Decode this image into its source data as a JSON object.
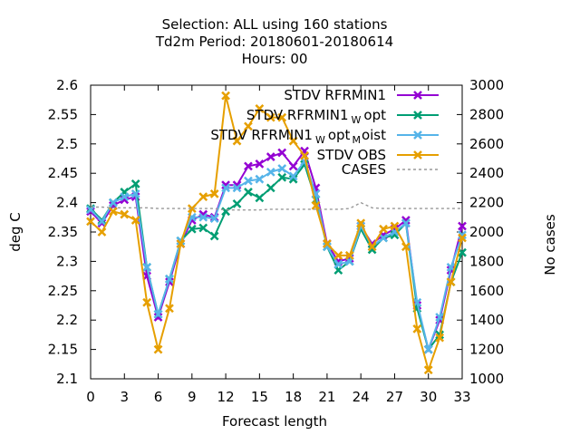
{
  "chart_data": {
    "type": "line",
    "title_lines": [
      "Selection: ALL using   160 stations",
      "Td2m   Period: 20180601-20180614",
      "Hours:  00"
    ],
    "xlabel": "Forecast length",
    "ylabel": "deg C",
    "y2label": "No cases",
    "xlim": [
      0,
      33
    ],
    "ylim": [
      2.1,
      2.6
    ],
    "y2lim": [
      1000,
      3000
    ],
    "xticks": [
      "0",
      "3",
      "6",
      "9",
      "12",
      "15",
      "18",
      "21",
      "24",
      "27",
      "30",
      "33"
    ],
    "yticks": [
      "2.1",
      "2.15",
      "2.2",
      "2.25",
      "2.3",
      "2.35",
      "2.4",
      "2.45",
      "2.5",
      "2.55",
      "2.6"
    ],
    "y2ticks": [
      "1000",
      "1200",
      "1400",
      "1600",
      "1800",
      "2000",
      "2200",
      "2400",
      "2600",
      "2800",
      "3000"
    ],
    "legend_position": "top-right",
    "x": [
      0,
      1,
      2,
      3,
      4,
      5,
      6,
      7,
      8,
      9,
      10,
      11,
      12,
      13,
      14,
      15,
      16,
      17,
      18,
      19,
      20,
      21,
      22,
      23,
      24,
      25,
      26,
      27,
      28,
      29,
      30,
      31,
      32,
      33
    ],
    "series": [
      {
        "name": "STDV RFRMIN1",
        "name_main": "STDV RFRMIN1",
        "color": "#9400d3",
        "axis": "y1",
        "values": [
          2.385,
          2.365,
          2.395,
          2.405,
          2.41,
          2.275,
          2.205,
          2.265,
          2.33,
          2.37,
          2.38,
          2.375,
          2.43,
          2.43,
          2.462,
          2.466,
          2.478,
          2.485,
          2.462,
          2.488,
          2.425,
          2.33,
          2.3,
          2.305,
          2.36,
          2.33,
          2.345,
          2.355,
          2.37,
          2.225,
          2.15,
          2.2,
          2.285,
          2.36
        ]
      },
      {
        "name": "STDV RFRMIN1 W opt",
        "name_main": "STDV RFRMIN1",
        "name_sub": "W",
        "name_tail": "opt",
        "color": "#009e73",
        "axis": "y1",
        "values": [
          2.39,
          2.37,
          2.4,
          2.418,
          2.432,
          2.29,
          2.21,
          2.27,
          2.335,
          2.355,
          2.357,
          2.343,
          2.385,
          2.398,
          2.418,
          2.408,
          2.425,
          2.443,
          2.44,
          2.465,
          2.405,
          2.325,
          2.285,
          2.3,
          2.355,
          2.32,
          2.34,
          2.345,
          2.365,
          2.22,
          2.15,
          2.175,
          2.265,
          2.315
        ]
      },
      {
        "name": "STDV RFRMIN1 W opt M oist",
        "name_main": "STDV RFRMIN1",
        "name_sub": "W",
        "name_tail": "opt",
        "name_sub2": "M",
        "name_tail2": "oist",
        "color": "#56b4e9",
        "axis": "y1",
        "values": [
          2.388,
          2.368,
          2.4,
          2.41,
          2.415,
          2.29,
          2.21,
          2.27,
          2.335,
          2.375,
          2.375,
          2.373,
          2.425,
          2.425,
          2.437,
          2.44,
          2.452,
          2.458,
          2.445,
          2.47,
          2.415,
          2.325,
          2.295,
          2.3,
          2.36,
          2.325,
          2.34,
          2.35,
          2.365,
          2.23,
          2.15,
          2.205,
          2.29,
          2.345
        ]
      },
      {
        "name": "STDV OBS",
        "name_main": "STDV OBS",
        "color": "#e69f00",
        "axis": "y1",
        "values": [
          2.368,
          2.35,
          2.385,
          2.38,
          2.37,
          2.23,
          2.15,
          2.22,
          2.33,
          2.39,
          2.41,
          2.415,
          2.582,
          2.505,
          2.53,
          2.56,
          2.545,
          2.545,
          2.505,
          2.48,
          2.395,
          2.33,
          2.31,
          2.31,
          2.365,
          2.325,
          2.355,
          2.36,
          2.325,
          2.185,
          2.115,
          2.17,
          2.265,
          2.34
        ]
      },
      {
        "name": "CASES",
        "name_main": "CASES",
        "color": "#999999",
        "axis": "y2",
        "dashed": true,
        "values": [
          2170,
          2170,
          2165,
          2165,
          2165,
          2165,
          2160,
          2160,
          2160,
          2160,
          2160,
          2160,
          2150,
          2150,
          2150,
          2150,
          2155,
          2155,
          2155,
          2155,
          2155,
          2155,
          2155,
          2160,
          2200,
          2165,
          2160,
          2160,
          2160,
          2160,
          2160,
          2160,
          2160,
          2160
        ]
      }
    ]
  }
}
